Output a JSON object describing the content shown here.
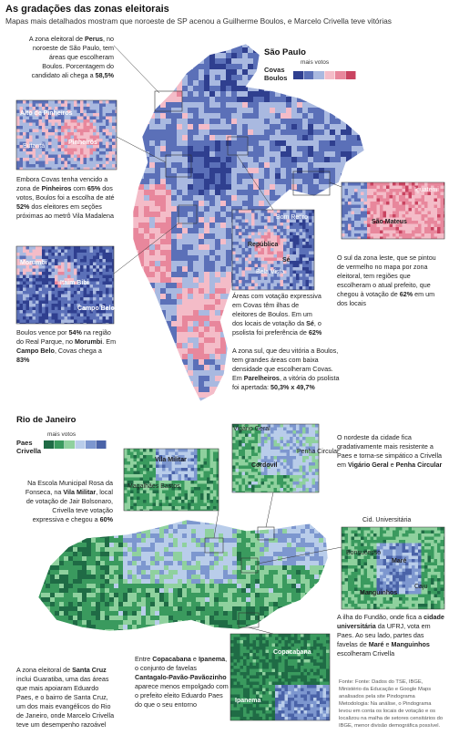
{
  "header": {
    "title": "As gradações das zonas eleitorais",
    "subtitle": "Mapas mais detalhados mostram que noroeste de SP acenou a Guilherme Boulos, e Marcelo Crivella teve vitórias"
  },
  "sao_paulo": {
    "title": "São Paulo",
    "legend": {
      "note": "mais votos",
      "items": [
        "Covas",
        "Boulos"
      ],
      "colors": [
        "#2f3f8f",
        "#5b70b8",
        "#a9b9e0",
        "#f4bcc8",
        "#e8879c",
        "#c94360"
      ]
    },
    "insets": [
      [
        "Alto de Pinheiros",
        "Butantã",
        "Pinheiros"
      ],
      [
        "Morumbi",
        "Itaim Bibi",
        "Campo Belo"
      ],
      [
        "Bom Retiro",
        "República",
        "Sé",
        "Bela Vista"
      ],
      [
        "Iguatemi",
        "São Mateus"
      ]
    ],
    "annotations": [
      [
        {
          "text": "A zona eleitoral de "
        },
        {
          "text": "Perus",
          "bold": true
        },
        {
          "text": ", no noroeste de São Paulo, tem áreas que escolheram Boulos. Porcentagem do candidato ali chega a "
        },
        {
          "text": "58,5%",
          "bold": true
        }
      ],
      [
        {
          "text": "Embora Covas tenha vencido a zona de "
        },
        {
          "text": "Pinheiros",
          "bold": true
        },
        {
          "text": " com "
        },
        {
          "text": "65%",
          "bold": true
        },
        {
          "text": " dos votos, Boulos foi a escolha de até "
        },
        {
          "text": "52%",
          "bold": true
        },
        {
          "text": " dos eleitores em seções próximas ao metrô Vila Madalena"
        }
      ],
      [
        {
          "text": "Boulos vence por "
        },
        {
          "text": "54%",
          "bold": true
        },
        {
          "text": " na região do Real Parque, no "
        },
        {
          "text": "Morumbi",
          "bold": true
        },
        {
          "text": ". Em "
        },
        {
          "text": "Campo Belo",
          "bold": true
        },
        {
          "text": ", Covas chega a "
        },
        {
          "text": "83%",
          "bold": true
        }
      ],
      [
        {
          "text": "Áreas com votação expressiva em Covas têm ilhas de eleitores de Boulos. Em um dos locais de votação da "
        },
        {
          "text": "Sé",
          "bold": true
        },
        {
          "text": ", o psolista foi preferência de "
        },
        {
          "text": "62%",
          "bold": true
        }
      ],
      [
        {
          "text": "O sul da zona leste, que se pintou de vermelho no mapa por zona eleitoral, tem regiões que escolheram o atual prefeito, que chegou à votação de "
        },
        {
          "text": "62%",
          "bold": true
        },
        {
          "text": " em um dos locais"
        }
      ],
      [
        {
          "text": "A zona sul, que deu vitória a Boulos, tem grandes áreas com baixa densidade que escolheram Covas. Em "
        },
        {
          "text": "Parelheiros",
          "bold": true
        },
        {
          "text": ", a vitória do psolista foi apertada: "
        },
        {
          "text": "50,3% x 49,7%",
          "bold": true
        }
      ]
    ]
  },
  "rio": {
    "title": "Rio de Janeiro",
    "legend": {
      "note": "mais votos",
      "items": [
        "Paes",
        "Crivella"
      ],
      "colors": [
        "#1f6b45",
        "#3a9a5e",
        "#8fd19e",
        "#b9cdea",
        "#7d97cf",
        "#4a63a8"
      ]
    },
    "insets": [
      [
        "Vila Militar",
        "Magalhães Bastos"
      ],
      [
        "Vigário Geral",
        "Cordovil",
        "Penha Circular"
      ],
      [
        "Cid. Universitária",
        "Bonsucesso",
        "Maré",
        "Caju",
        "Manguinhos"
      ],
      [
        "Copacabana",
        "Ipanema"
      ]
    ],
    "annotations": [
      [
        {
          "text": "Na Escola Municipal Rosa da Fonseca, na "
        },
        {
          "text": "Vila Militar",
          "bold": true
        },
        {
          "text": ", local de votação de Jair Bolsonaro, Crivella teve votação expressiva e chegou a "
        },
        {
          "text": "60%",
          "bold": true
        }
      ],
      [
        {
          "text": "O nordeste da cidade fica gradativamente mais resistente a Paes e torna-se simpático a Crivella em "
        },
        {
          "text": "Vigário Geral",
          "bold": true
        },
        {
          "text": " e "
        },
        {
          "text": "Penha Circular",
          "bold": true
        }
      ],
      [
        {
          "text": "A ilha do Fundão, onde fica a "
        },
        {
          "text": "cidade universitária",
          "bold": true
        },
        {
          "text": " da UFRJ, vota em Paes. Ao seu lado, partes das favelas de "
        },
        {
          "text": "Maré",
          "bold": true
        },
        {
          "text": " e "
        },
        {
          "text": "Manguinhos",
          "bold": true
        },
        {
          "text": " escolheram Crivella"
        }
      ],
      [
        {
          "text": "A zona eleitoral de "
        },
        {
          "text": "Santa Cruz",
          "bold": true
        },
        {
          "text": " inclui Guaratiba, uma das áreas que mais apoiaram Eduardo Paes, e o bairro de Santa Cruz, um dos mais evangélicos do Rio de Janeiro, onde Marcelo Crivella teve um desempenho razoável"
        }
      ],
      [
        {
          "text": "Entre "
        },
        {
          "text": "Copacabana",
          "bold": true
        },
        {
          "text": " e "
        },
        {
          "text": "Ipanema",
          "bold": true
        },
        {
          "text": ", o conjunto de favelas "
        },
        {
          "text": "Cantagalo-Pavão-Pavãozinho",
          "bold": true
        },
        {
          "text": " aparece menos empolgado com o prefeito eleito Eduardo Paes do que o seu entorno"
        }
      ]
    ]
  },
  "source": "Fonte: Fonte: Dados do TSE, IBGE, Ministério da Educação e Google Maps analisados pela site Pindograma Metodologia: Na análise, o Pindograma levou em conta os locais de votação e os localizou na malha de setores censitários do IBGE, menor divisão demográfica possível."
}
